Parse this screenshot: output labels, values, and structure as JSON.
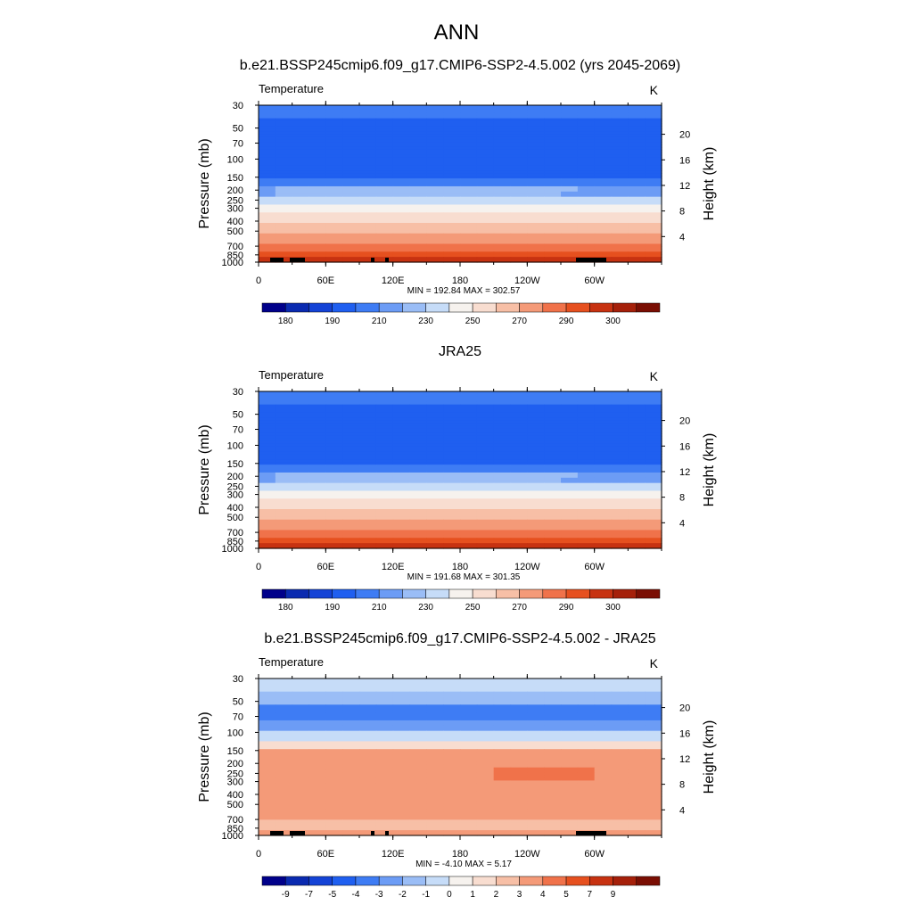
{
  "page": {
    "main_title": "ANN"
  },
  "chart_data": [
    {
      "type": "heatmap",
      "title": "b.e21.BSSP245cmip6.f09_g17.CMIP6-SSP2-4.5.002 (yrs 2045-2069)",
      "variable": "Temperature",
      "units": "K",
      "ylabel": "Pressure (mb)",
      "ylabel_right": "Height (km)",
      "xticks": [
        "0",
        "60E",
        "120E",
        "180",
        "120W",
        "60W"
      ],
      "xlim": [
        0,
        360
      ],
      "ylim": [
        30,
        1000
      ],
      "yticks": [
        30,
        50,
        70,
        100,
        150,
        200,
        250,
        300,
        400,
        500,
        700,
        850,
        1000
      ],
      "height_ticks": [
        4,
        8,
        12,
        16,
        20
      ],
      "stats": "MIN = 192.84  MAX = 302.57",
      "colorbar_labels": [
        "180",
        "190",
        "210",
        "230",
        "250",
        "270",
        "290",
        "300"
      ],
      "colors": [
        "#00008a",
        "#0a2ab0",
        "#1443d6",
        "#1f5ff0",
        "#3e7cf4",
        "#6c9cf5",
        "#9abdf6",
        "#c6dcf8",
        "#f6f2ee",
        "#f8ddd0",
        "#f7bfa6",
        "#f49a78",
        "#f0724a",
        "#e6501f",
        "#c73211",
        "#a5200a",
        "#7a0e03"
      ],
      "profile_type": "temp"
    },
    {
      "type": "heatmap",
      "title": "JRA25",
      "variable": "Temperature",
      "units": "K",
      "ylabel": "Pressure (mb)",
      "ylabel_right": "Height (km)",
      "xticks": [
        "0",
        "60E",
        "120E",
        "180",
        "120W",
        "60W"
      ],
      "xlim": [
        0,
        360
      ],
      "ylim": [
        30,
        1000
      ],
      "yticks": [
        30,
        50,
        70,
        100,
        150,
        200,
        250,
        300,
        400,
        500,
        700,
        850,
        1000
      ],
      "height_ticks": [
        4,
        8,
        12,
        16,
        20
      ],
      "stats": "MIN = 191.68  MAX = 301.35",
      "colorbar_labels": [
        "180",
        "190",
        "210",
        "230",
        "250",
        "270",
        "290",
        "300"
      ],
      "colors": [
        "#00008a",
        "#0a2ab0",
        "#1443d6",
        "#1f5ff0",
        "#3e7cf4",
        "#6c9cf5",
        "#9abdf6",
        "#c6dcf8",
        "#f6f2ee",
        "#f8ddd0",
        "#f7bfa6",
        "#f49a78",
        "#f0724a",
        "#e6501f",
        "#c73211",
        "#a5200a",
        "#7a0e03"
      ],
      "profile_type": "temp"
    },
    {
      "type": "heatmap",
      "title": "b.e21.BSSP245cmip6.f09_g17.CMIP6-SSP2-4.5.002 - JRA25",
      "variable": "Temperature",
      "units": "K",
      "ylabel": "Pressure (mb)",
      "ylabel_right": "Height (km)",
      "xticks": [
        "0",
        "60E",
        "120E",
        "180",
        "120W",
        "60W"
      ],
      "xlim": [
        0,
        360
      ],
      "ylim": [
        30,
        1000
      ],
      "yticks": [
        30,
        50,
        70,
        100,
        150,
        200,
        250,
        300,
        400,
        500,
        700,
        850,
        1000
      ],
      "height_ticks": [
        4,
        8,
        12,
        16,
        20
      ],
      "stats": "MIN =  -4.10  MAX =   5.17",
      "colorbar_labels": [
        "-9",
        "-7",
        "-5",
        "-4",
        "-3",
        "-2",
        "-1",
        "0",
        "1",
        "2",
        "3",
        "4",
        "5",
        "7",
        "9"
      ],
      "colors": [
        "#00008a",
        "#0a2ab0",
        "#1443d6",
        "#1f5ff0",
        "#3e7cf4",
        "#6c9cf5",
        "#9abdf6",
        "#c6dcf8",
        "#f6f2ee",
        "#f8ddd0",
        "#f7bfa6",
        "#f49a78",
        "#f0724a",
        "#e6501f",
        "#c73211",
        "#a5200a",
        "#7a0e03"
      ],
      "profile_type": "diff"
    }
  ]
}
